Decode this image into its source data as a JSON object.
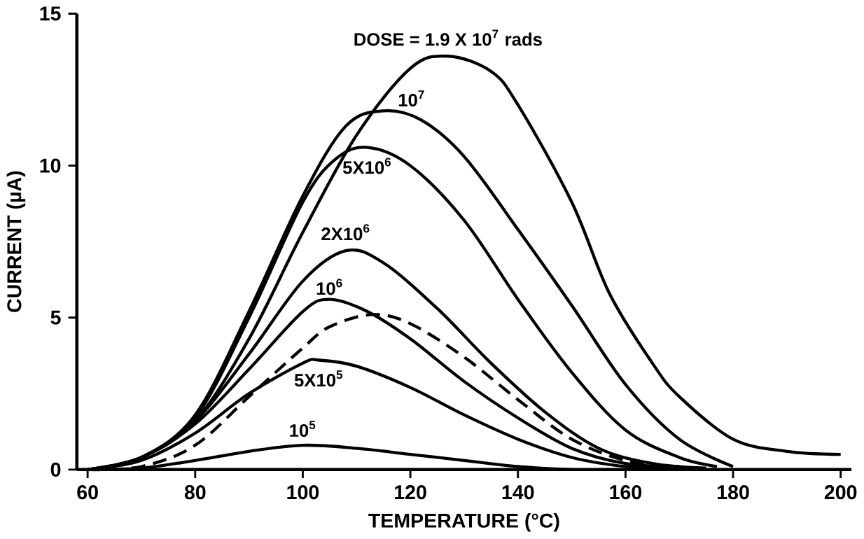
{
  "chart_data": {
    "type": "line",
    "xlabel": "TEMPERATURE (°C)",
    "ylabel": "CURRENT (µA)",
    "xlim": [
      58,
      202
    ],
    "xticks": [
      60,
      80,
      100,
      120,
      140,
      160,
      180,
      200
    ],
    "ylim": [
      0,
      15
    ],
    "yticks": [
      0,
      5,
      10,
      15
    ],
    "grid": false,
    "marker": "none",
    "line_style": "solid",
    "series": [
      {
        "name": "DOSE = 1.9 X 10$^{7}$ rads",
        "color": "#000000",
        "x": [
          60,
          70,
          80,
          90,
          100,
          110,
          120,
          127,
          135,
          140,
          150,
          157,
          165,
          170,
          180,
          190,
          200
        ],
        "values": [
          0,
          0.4,
          1.6,
          4.3,
          7.8,
          11,
          13.2,
          13.6,
          13.1,
          12,
          8.8,
          5.8,
          3.5,
          2.4,
          1.0,
          0.6,
          0.5
        ]
      },
      {
        "name": "10$^{7}$",
        "color": "#000000",
        "x": [
          60,
          70,
          80,
          90,
          100,
          108,
          115,
          122,
          130,
          140,
          150,
          160,
          170,
          180
        ],
        "values": [
          0,
          0.4,
          1.8,
          5.2,
          9,
          11.3,
          11.8,
          11.5,
          10.3,
          7.9,
          5.4,
          2.8,
          1.0,
          0.1
        ]
      },
      {
        "name": "5X10$^{6}$",
        "color": "#000000",
        "x": [
          60,
          70,
          80,
          90,
          100,
          106,
          112,
          120,
          130,
          140,
          150,
          160,
          170,
          177
        ],
        "values": [
          0,
          0.4,
          1.7,
          5,
          8.8,
          10.2,
          10.6,
          10,
          8.2,
          5.6,
          3.2,
          1.3,
          0.4,
          0.1
        ]
      },
      {
        "name": "2X10$^{6}$",
        "color": "#000000",
        "x": [
          60,
          70,
          80,
          90,
          100,
          108,
          115,
          125,
          135,
          145,
          155,
          165,
          175
        ],
        "values": [
          0,
          0.4,
          1.6,
          3.8,
          6.2,
          7.2,
          6.8,
          5.3,
          3.5,
          1.9,
          0.7,
          0.2,
          0.05
        ]
      },
      {
        "name": "10$^{6}$",
        "color": "#000000",
        "x": [
          60,
          70,
          80,
          90,
          100,
          105,
          112,
          120,
          130,
          140,
          150,
          160,
          170
        ],
        "values": [
          0,
          0.4,
          1.5,
          3.3,
          5.2,
          5.6,
          5.2,
          4.3,
          2.9,
          1.7,
          0.7,
          0.2,
          0.1
        ]
      },
      {
        "color": "#000000",
        "line_style": "dashed",
        "x": [
          60,
          70,
          80,
          90,
          100,
          105,
          113,
          120,
          130,
          140,
          150,
          160,
          170
        ],
        "values": [
          0,
          0.1,
          0.8,
          2.4,
          4.0,
          4.7,
          5.1,
          4.8,
          3.7,
          2.3,
          1.0,
          0.3,
          0.05
        ]
      },
      {
        "name": "5X10$^{5}$",
        "color": "#000000",
        "x": [
          60,
          70,
          80,
          90,
          100,
          103,
          110,
          120,
          130,
          140,
          150,
          160,
          170
        ],
        "values": [
          0,
          0.3,
          1.2,
          2.5,
          3.5,
          3.6,
          3.4,
          2.7,
          1.8,
          1.0,
          0.4,
          0.1,
          0
        ]
      },
      {
        "name": "10$^{5}$",
        "color": "#000000",
        "x": [
          60,
          70,
          80,
          90,
          100,
          110,
          120,
          130,
          140,
          150
        ],
        "values": [
          0,
          0.05,
          0.3,
          0.6,
          0.8,
          0.7,
          0.5,
          0.3,
          0.1,
          0
        ]
      }
    ]
  }
}
